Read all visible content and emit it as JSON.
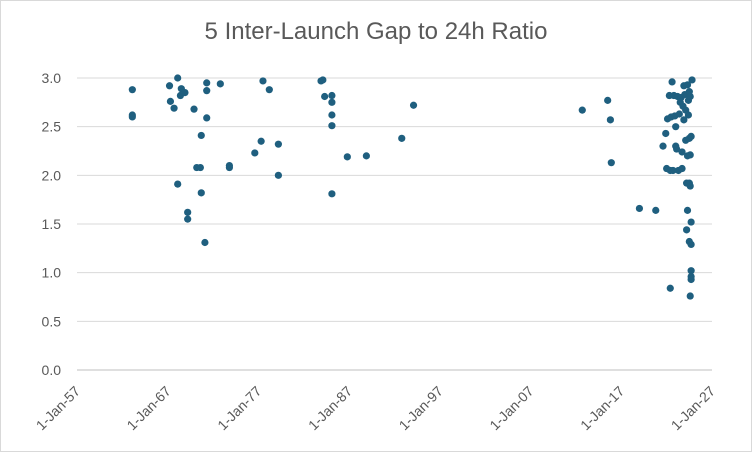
{
  "chart_data": {
    "type": "scatter",
    "title": "5 Inter-Launch Gap to 24h Ratio",
    "xlabel": "",
    "ylabel": "",
    "ylim": [
      0,
      3.0
    ],
    "xlim": [
      1957.0,
      2027.0
    ],
    "grid": "horizontal",
    "legend": "none",
    "color": "#1f5f7f",
    "y_ticks": [
      "0.0",
      "0.5",
      "1.0",
      "1.5",
      "2.0",
      "2.5",
      "3.0"
    ],
    "x_ticks": [
      "1-Jan-57",
      "1-Jan-67",
      "1-Jan-77",
      "1-Jan-87",
      "1-Jan-97",
      "1-Jan-07",
      "1-Jan-17",
      "1-Jan-27"
    ],
    "series": [
      {
        "points": [
          [
            1963.1,
            2.88
          ],
          [
            1963.1,
            2.62
          ],
          [
            1963.1,
            2.6
          ],
          [
            1967.2,
            2.92
          ],
          [
            1967.3,
            2.76
          ],
          [
            1967.7,
            2.69
          ],
          [
            1968.1,
            3.0
          ],
          [
            1968.1,
            1.91
          ],
          [
            1968.5,
            2.89
          ],
          [
            1968.4,
            2.82
          ],
          [
            1968.9,
            2.85
          ],
          [
            1969.2,
            1.62
          ],
          [
            1969.2,
            1.55
          ],
          [
            1969.9,
            2.68
          ],
          [
            1970.2,
            2.08
          ],
          [
            1970.6,
            2.08
          ],
          [
            1970.7,
            2.41
          ],
          [
            1970.7,
            1.82
          ],
          [
            1971.1,
            1.31
          ],
          [
            1971.3,
            2.95
          ],
          [
            1971.3,
            2.87
          ],
          [
            1971.3,
            2.59
          ],
          [
            1972.8,
            2.94
          ],
          [
            1973.8,
            2.1
          ],
          [
            1973.8,
            2.08
          ],
          [
            1976.6,
            2.23
          ],
          [
            1977.3,
            2.35
          ],
          [
            1977.5,
            2.97
          ],
          [
            1978.2,
            2.88
          ],
          [
            1979.2,
            2.32
          ],
          [
            1979.2,
            2.0
          ],
          [
            1983.9,
            2.97
          ],
          [
            1984.1,
            2.98
          ],
          [
            1984.3,
            2.81
          ],
          [
            1985.1,
            2.82
          ],
          [
            1985.1,
            2.75
          ],
          [
            1985.1,
            2.62
          ],
          [
            1985.1,
            2.51
          ],
          [
            1985.1,
            1.81
          ],
          [
            1986.8,
            2.19
          ],
          [
            1988.9,
            2.2
          ],
          [
            1992.8,
            2.38
          ],
          [
            1994.1,
            2.72
          ],
          [
            2012.7,
            2.67
          ],
          [
            2015.5,
            2.77
          ],
          [
            2015.8,
            2.57
          ],
          [
            2015.9,
            2.13
          ],
          [
            2019.0,
            1.66
          ],
          [
            2020.8,
            1.64
          ],
          [
            2021.6,
            2.3
          ],
          [
            2021.9,
            2.43
          ],
          [
            2022.0,
            2.07
          ],
          [
            2022.1,
            2.58
          ],
          [
            2022.3,
            2.82
          ],
          [
            2022.4,
            2.05
          ],
          [
            2022.5,
            2.6
          ],
          [
            2022.6,
            2.96
          ],
          [
            2022.7,
            2.05
          ],
          [
            2022.8,
            2.82
          ],
          [
            2022.9,
            2.61
          ],
          [
            2023.0,
            2.5
          ],
          [
            2023.0,
            2.3
          ],
          [
            2023.1,
            2.27
          ],
          [
            2023.2,
            2.81
          ],
          [
            2023.3,
            2.05
          ],
          [
            2023.4,
            2.63
          ],
          [
            2023.5,
            2.75
          ],
          [
            2023.6,
            2.8
          ],
          [
            2023.7,
            2.24
          ],
          [
            2023.7,
            2.07
          ],
          [
            2023.8,
            2.71
          ],
          [
            2023.9,
            2.92
          ],
          [
            2023.9,
            2.57
          ],
          [
            2024.0,
            2.83
          ],
          [
            2024.1,
            2.67
          ],
          [
            2024.1,
            2.36
          ],
          [
            2024.2,
            1.92
          ],
          [
            2024.2,
            1.44
          ],
          [
            2024.3,
            2.93
          ],
          [
            2024.3,
            2.2
          ],
          [
            2024.3,
            1.64
          ],
          [
            2024.4,
            2.77
          ],
          [
            2024.4,
            2.62
          ],
          [
            2024.5,
            2.86
          ],
          [
            2024.5,
            2.38
          ],
          [
            2024.5,
            1.92
          ],
          [
            2024.5,
            1.32
          ],
          [
            2024.6,
            2.81
          ],
          [
            2024.6,
            2.21
          ],
          [
            2024.6,
            1.89
          ],
          [
            2024.7,
            2.4
          ],
          [
            2024.7,
            1.52
          ],
          [
            2024.7,
            1.29
          ],
          [
            2024.7,
            1.02
          ],
          [
            2024.7,
            0.96
          ],
          [
            2024.7,
            0.93
          ],
          [
            2024.8,
            2.98
          ],
          [
            2022.4,
            0.84
          ],
          [
            2024.6,
            0.76
          ]
        ]
      }
    ]
  }
}
